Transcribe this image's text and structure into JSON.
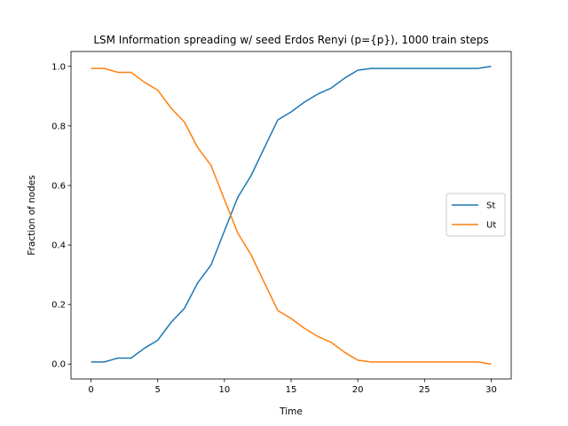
{
  "chart_data": {
    "type": "line",
    "title": "LSM Information spreading w/ seed Erdos Renyi (p={p}), 1000 train steps",
    "xlabel": "Time",
    "ylabel": "Fraction of nodes",
    "xlim": [
      -1.5,
      31.5
    ],
    "ylim": [
      -0.05,
      1.05
    ],
    "xticks": [
      "0",
      "5",
      "10",
      "15",
      "20",
      "25",
      "30"
    ],
    "yticks": [
      "0.0",
      "0.2",
      "0.4",
      "0.6",
      "0.8",
      "1.0"
    ],
    "grid": false,
    "legend_position": "center-right",
    "x": [
      0,
      1,
      2,
      3,
      4,
      5,
      6,
      7,
      8,
      9,
      10,
      11,
      12,
      13,
      14,
      15,
      16,
      17,
      18,
      19,
      20,
      21,
      22,
      23,
      24,
      25,
      26,
      27,
      28,
      29,
      30
    ],
    "series": [
      {
        "name": "St",
        "color": "#1f77b4",
        "values": [
          0.007,
          0.007,
          0.02,
          0.02,
          0.053,
          0.08,
          0.14,
          0.187,
          0.273,
          0.333,
          0.447,
          0.56,
          0.633,
          0.727,
          0.82,
          0.847,
          0.88,
          0.907,
          0.927,
          0.96,
          0.987,
          0.993,
          0.993,
          0.993,
          0.993,
          0.993,
          0.993,
          0.993,
          0.993,
          0.993,
          1.0
        ]
      },
      {
        "name": "Ut",
        "color": "#ff7f0e",
        "values": [
          0.993,
          0.993,
          0.98,
          0.98,
          0.947,
          0.92,
          0.86,
          0.813,
          0.727,
          0.667,
          0.553,
          0.44,
          0.367,
          0.273,
          0.18,
          0.153,
          0.12,
          0.093,
          0.073,
          0.04,
          0.013,
          0.007,
          0.007,
          0.007,
          0.007,
          0.007,
          0.007,
          0.007,
          0.007,
          0.007,
          0.0
        ]
      }
    ]
  }
}
